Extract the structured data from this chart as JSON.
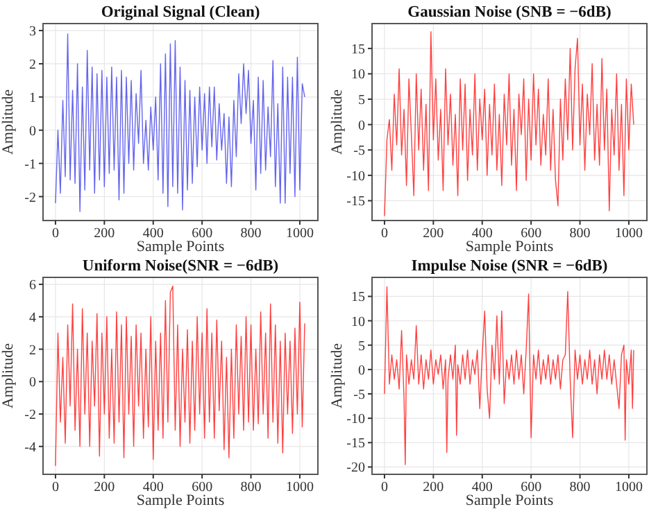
{
  "chart_data": [
    {
      "type": "line",
      "title": "Original Signal (Clean)",
      "xlabel": "Sample Points",
      "ylabel": "Amplitude",
      "color": "#3030e8",
      "grid": true,
      "xlim": [
        -51,
        1074
      ],
      "xticks": [
        0,
        200,
        400,
        600,
        800,
        1000
      ],
      "ylim": [
        -2.72,
        3.21
      ],
      "yticks": [
        -2,
        -1,
        0,
        1,
        2,
        3
      ],
      "x": [
        0,
        10,
        20,
        30,
        40,
        50,
        60,
        70,
        80,
        90,
        100,
        110,
        120,
        130,
        140,
        150,
        160,
        170,
        180,
        190,
        200,
        210,
        220,
        230,
        240,
        250,
        260,
        270,
        280,
        290,
        300,
        310,
        320,
        330,
        340,
        350,
        360,
        370,
        380,
        390,
        400,
        410,
        420,
        430,
        440,
        450,
        460,
        470,
        480,
        490,
        500,
        510,
        520,
        530,
        540,
        550,
        560,
        570,
        580,
        590,
        600,
        610,
        620,
        630,
        640,
        650,
        660,
        670,
        680,
        690,
        700,
        710,
        720,
        730,
        740,
        750,
        760,
        770,
        780,
        790,
        800,
        810,
        820,
        830,
        840,
        850,
        860,
        870,
        880,
        890,
        900,
        910,
        920,
        930,
        940,
        950,
        960,
        970,
        980,
        990,
        1000,
        1010,
        1020
      ],
      "values": [
        -2.2,
        0,
        -1.9,
        0.9,
        -1.4,
        2.9,
        -1.5,
        1.2,
        -1.6,
        2.0,
        -2.45,
        1.3,
        -1.8,
        2.4,
        -1.2,
        1.9,
        -1.9,
        1.7,
        -1.5,
        1.8,
        -1.7,
        1.6,
        -1.3,
        1.9,
        -1.2,
        1.6,
        -2.1,
        1.8,
        -1.9,
        1.6,
        -1.0,
        1.5,
        -1.2,
        1.1,
        -0.4,
        1.8,
        -1.0,
        0.3,
        -1.2,
        0.7,
        -0.6,
        1.0,
        -1.5,
        2.0,
        -1.9,
        2.3,
        -2.3,
        2.6,
        -1.7,
        2.7,
        -1.9,
        1.9,
        -2.4,
        1.5,
        -1.8,
        1.2,
        -1.6,
        1.0,
        -1.1,
        1.3,
        -0.6,
        1.1,
        -1.0,
        1.3,
        -0.5,
        1.3,
        -0.9,
        0.8,
        -0.6,
        0.5,
        -1.6,
        0.4,
        -1.7,
        0.9,
        -0.8,
        1.7,
        0.2,
        2.0,
        0.5,
        1.8,
        -0.4,
        0.9,
        -1.8,
        1.6,
        -1.3,
        1.5,
        -1.2,
        0.7,
        -0.8,
        2.1,
        -1.7,
        0.8,
        -2.2,
        1.9,
        -2.2,
        1.6,
        -1.3,
        1.6,
        -2.0,
        2.2,
        -1.8,
        1.4,
        1.0
      ]
    },
    {
      "type": "line",
      "title": "Gaussian Noise (SNB = −6dB)",
      "xlabel": "Sample Points",
      "ylabel": "Amplitude",
      "color": "#ff0000",
      "grid": true,
      "xlim": [
        -51,
        1074
      ],
      "xticks": [
        0,
        200,
        400,
        600,
        800,
        1000
      ],
      "ylim": [
        -18.9,
        19.9
      ],
      "yticks": [
        -15,
        -10,
        -5,
        0,
        5,
        10,
        15
      ],
      "x": [
        0,
        10,
        20,
        30,
        40,
        50,
        60,
        70,
        80,
        90,
        100,
        110,
        120,
        130,
        140,
        150,
        160,
        170,
        180,
        190,
        200,
        210,
        220,
        230,
        240,
        250,
        260,
        270,
        280,
        290,
        300,
        310,
        320,
        330,
        340,
        350,
        360,
        370,
        380,
        390,
        400,
        410,
        420,
        430,
        440,
        450,
        460,
        470,
        480,
        490,
        500,
        510,
        520,
        530,
        540,
        550,
        560,
        570,
        580,
        590,
        600,
        610,
        620,
        630,
        640,
        650,
        660,
        670,
        680,
        690,
        700,
        710,
        720,
        730,
        740,
        750,
        760,
        770,
        780,
        790,
        800,
        810,
        820,
        830,
        840,
        850,
        860,
        870,
        880,
        890,
        900,
        910,
        920,
        930,
        940,
        950,
        960,
        970,
        980,
        990,
        1000,
        1010,
        1020
      ],
      "values": [
        -18,
        -3,
        1,
        -9,
        6,
        -4,
        11,
        -6,
        3,
        -12,
        9,
        -2,
        -14,
        10,
        -5,
        7,
        -9,
        4,
        -13,
        18.3,
        -3,
        9,
        -7,
        3,
        -13,
        11,
        -4,
        6,
        -8,
        2,
        -14,
        9,
        -5,
        8,
        -11,
        3,
        -6,
        10,
        -9,
        5,
        -3,
        7,
        -10,
        4,
        -6,
        8,
        -9,
        2,
        -12,
        6,
        -4,
        10,
        -8,
        3,
        -13,
        6,
        -2,
        9,
        -11,
        5,
        -7,
        10,
        -4,
        7,
        -8,
        2,
        -6,
        9,
        -9,
        3,
        -11,
        -16,
        5,
        -7,
        9,
        -3,
        15,
        -5,
        11,
        17,
        -4,
        8,
        -9,
        6,
        -2,
        12,
        -7,
        4,
        -8,
        13,
        -5,
        7,
        -17,
        3,
        -6,
        10,
        -9,
        4,
        -14,
        9,
        -5,
        8,
        0
      ]
    },
    {
      "type": "line",
      "title": "Uniform Noise(SNR = −6dB)",
      "xlabel": "Sample Points",
      "ylabel": "Amplitude",
      "color": "#ff0000",
      "grid": true,
      "xlim": [
        -51,
        1074
      ],
      "xticks": [
        0,
        200,
        400,
        600,
        800,
        1000
      ],
      "ylim": [
        -5.72,
        6.43
      ],
      "yticks": [
        -4,
        -2,
        0,
        2,
        4,
        6
      ],
      "x": [
        0,
        10,
        20,
        30,
        40,
        50,
        60,
        70,
        80,
        90,
        100,
        110,
        120,
        130,
        140,
        150,
        160,
        170,
        180,
        190,
        200,
        210,
        220,
        230,
        240,
        250,
        260,
        270,
        280,
        290,
        300,
        310,
        320,
        330,
        340,
        350,
        360,
        370,
        380,
        390,
        400,
        410,
        420,
        430,
        440,
        450,
        460,
        470,
        480,
        490,
        500,
        510,
        520,
        530,
        540,
        550,
        560,
        570,
        580,
        590,
        600,
        610,
        620,
        630,
        640,
        650,
        660,
        670,
        680,
        690,
        700,
        710,
        720,
        730,
        740,
        750,
        760,
        770,
        780,
        790,
        800,
        810,
        820,
        830,
        840,
        850,
        860,
        870,
        880,
        890,
        900,
        910,
        920,
        930,
        940,
        950,
        960,
        970,
        980,
        990,
        1000,
        1010,
        1020
      ],
      "values": [
        -5.2,
        3,
        -2.5,
        1.5,
        -3.8,
        3.5,
        -1.5,
        4.8,
        -3,
        2,
        -4,
        4.5,
        -2,
        3,
        -4,
        2.5,
        -1.5,
        4.2,
        -4.6,
        3,
        -2,
        4,
        -3.5,
        2,
        -3.8,
        4.3,
        -2.5,
        3.5,
        -4.7,
        4,
        -2,
        2.8,
        -4,
        3.5,
        -1.5,
        3,
        -3.5,
        2,
        -2.8,
        4,
        -4.8,
        2.5,
        -3,
        3,
        -3.5,
        5,
        -2.5,
        5.5,
        5.9,
        -3,
        3.5,
        -4,
        2,
        -2.5,
        3.2,
        -3.8,
        2.5,
        -3,
        4,
        -2,
        3,
        -3.5,
        4.5,
        -2.5,
        3,
        -3.5,
        3.8,
        -1.8,
        2.5,
        -4.2,
        1.5,
        -4.7,
        2,
        -3.5,
        3.5,
        -2,
        2.8,
        -3,
        4,
        -2.5,
        3.5,
        -3,
        2,
        -2.6,
        4.3,
        -2,
        3,
        -3.5,
        4.8,
        -2.5,
        3.5,
        -3.8,
        2.5,
        -4.4,
        3,
        -2,
        2.5,
        -3.2,
        3.3,
        -2,
        4.9,
        -2.8,
        3.6
      ]
    },
    {
      "type": "line",
      "title": "Impulse Noise (SNR = −6dB)",
      "xlabel": "Sample Points",
      "ylabel": "Amplitude",
      "color": "#ff0000",
      "grid": true,
      "xlim": [
        -51,
        1074
      ],
      "xticks": [
        0,
        200,
        400,
        600,
        800,
        1000
      ],
      "ylim": [
        -21.5,
        18.9
      ],
      "yticks": [
        -20,
        -15,
        -10,
        -5,
        0,
        5,
        10,
        15
      ],
      "x": [
        0,
        10,
        20,
        30,
        40,
        50,
        60,
        70,
        80,
        85,
        90,
        100,
        110,
        120,
        130,
        140,
        150,
        160,
        170,
        180,
        190,
        200,
        210,
        220,
        230,
        240,
        250,
        255,
        260,
        270,
        280,
        290,
        295,
        300,
        310,
        320,
        330,
        340,
        350,
        360,
        370,
        380,
        390,
        400,
        410,
        420,
        430,
        440,
        450,
        460,
        470,
        480,
        490,
        500,
        510,
        520,
        530,
        540,
        550,
        560,
        570,
        580,
        590,
        600,
        610,
        620,
        630,
        640,
        650,
        660,
        670,
        680,
        690,
        700,
        710,
        720,
        730,
        740,
        750,
        760,
        770,
        780,
        790,
        800,
        810,
        820,
        830,
        840,
        850,
        860,
        870,
        880,
        890,
        900,
        910,
        920,
        930,
        940,
        950,
        960,
        970,
        980,
        985,
        990,
        1000,
        1010,
        1015,
        1020
      ],
      "values": [
        -5,
        17,
        -3,
        3,
        -2,
        2,
        -4,
        8,
        -6,
        -19.5,
        3,
        -3,
        2,
        -2,
        9,
        -3,
        3,
        -4,
        2,
        -2,
        4,
        -3,
        2,
        -1,
        3,
        -4,
        2,
        -17,
        -2,
        3,
        -2,
        5,
        -13.5,
        1,
        -3,
        3,
        -2,
        4,
        -3,
        2,
        -1,
        4,
        -8,
        3,
        12,
        -4,
        -10,
        5,
        -2,
        11,
        -3,
        12,
        -7,
        2,
        -2,
        3,
        -3,
        4,
        -2,
        3,
        -5,
        4,
        15.5,
        -14,
        3,
        -2,
        4,
        -3,
        2,
        -2,
        3,
        -3,
        2,
        -2,
        3,
        -4,
        2,
        3,
        16,
        -2,
        -14,
        4,
        -2,
        3,
        -3,
        2,
        -2,
        4,
        -3,
        2,
        -5,
        3,
        -2,
        4,
        -2,
        3,
        -3,
        2,
        -3,
        -8,
        3,
        5,
        -14.5,
        2,
        -3,
        4,
        -8,
        4
      ]
    }
  ]
}
